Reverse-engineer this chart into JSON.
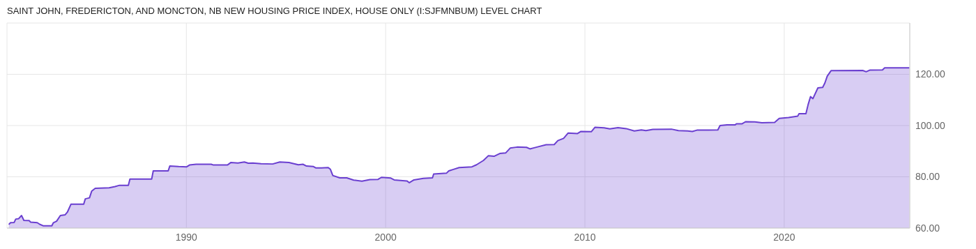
{
  "chart_data": {
    "type": "area",
    "title": "SAINT JOHN, FREDERICTON, AND MONCTON, NB NEW HOUSING PRICE INDEX, HOUSE ONLY (I:SJFMNBUM) LEVEL CHART",
    "x": [
      1981.09,
      1981.18,
      1981.36,
      1981.44,
      1981.59,
      1981.73,
      1981.85,
      1982.11,
      1982.19,
      1982.52,
      1982.64,
      1982.81,
      1983.25,
      1983.33,
      1983.49,
      1983.68,
      1983.92,
      1984.03,
      1984.21,
      1984.85,
      1984.93,
      1985.14,
      1985.25,
      1985.43,
      1986.13,
      1986.42,
      1986.65,
      1987.09,
      1987.17,
      1988.26,
      1988.34,
      1989.09,
      1989.17,
      1989.62,
      1990.02,
      1990.16,
      1990.49,
      1991.25,
      1991.36,
      1992.06,
      1992.24,
      1992.59,
      1992.91,
      1993.11,
      1993.34,
      1993.75,
      1994.33,
      1994.69,
      1995.15,
      1995.62,
      1995.85,
      1996.03,
      1996.38,
      1996.49,
      1996.78,
      1997.12,
      1997.23,
      1997.35,
      1997.7,
      1998.05,
      1998.4,
      1998.81,
      1999.21,
      1999.62,
      1999.79,
      2000.26,
      2000.43,
      2001.07,
      2001.19,
      2001.42,
      2001.89,
      2002.35,
      2002.41,
      2003.05,
      2003.17,
      2003.4,
      2003.69,
      2004.33,
      2004.56,
      2004.91,
      2005.15,
      2005.44,
      2005.73,
      2006.02,
      2006.25,
      2006.6,
      2007.07,
      2007.24,
      2007.59,
      2008.05,
      2008.46,
      2008.64,
      2008.93,
      2009.16,
      2009.63,
      2009.8,
      2010.32,
      2010.5,
      2010.96,
      2011.25,
      2011.66,
      2012.07,
      2012.48,
      2012.83,
      2013.06,
      2013.41,
      2014.34,
      2014.69,
      2015.16,
      2015.39,
      2015.62,
      2016.67,
      2016.78,
      2017.13,
      2017.54,
      2017.6,
      2017.89,
      2018.06,
      2018.53,
      2018.88,
      2019.52,
      2019.75,
      2020.22,
      2020.68,
      2020.74,
      2021.09,
      2021.2,
      2021.32,
      2021.44,
      2021.69,
      2021.93,
      2022.04,
      2022.16,
      2022.35,
      2023.94,
      2024.11,
      2024.29,
      2024.93,
      2025.04,
      2026.28
    ],
    "series": [
      {
        "color": "#6a3fd0",
        "values": [
          61.4,
          62.1,
          62.2,
          63.5,
          63.7,
          64.9,
          63.0,
          62.9,
          62.3,
          62.1,
          61.5,
          60.9,
          60.9,
          62.1,
          62.7,
          64.9,
          65.2,
          66.2,
          69.3,
          69.3,
          71.4,
          71.8,
          74.4,
          75.5,
          75.7,
          76.2,
          76.7,
          76.7,
          79.1,
          79.1,
          82.3,
          82.3,
          84.2,
          84.0,
          83.9,
          84.6,
          84.9,
          84.9,
          84.6,
          84.6,
          85.6,
          85.4,
          85.8,
          85.3,
          85.4,
          85.1,
          85.0,
          85.8,
          85.6,
          84.7,
          84.9,
          84.2,
          84.0,
          83.5,
          83.5,
          83.6,
          82.9,
          80.5,
          79.6,
          79.6,
          78.7,
          78.3,
          78.9,
          79.0,
          79.8,
          79.5,
          78.8,
          78.4,
          77.7,
          78.8,
          79.4,
          79.6,
          81.1,
          81.4,
          82.3,
          82.9,
          83.6,
          83.9,
          84.7,
          86.4,
          88.2,
          88.0,
          89.1,
          89.3,
          91.2,
          91.6,
          91.5,
          90.9,
          91.6,
          92.5,
          92.6,
          94.1,
          95.0,
          97.1,
          96.9,
          97.7,
          97.6,
          99.3,
          99.1,
          98.7,
          99.2,
          98.8,
          97.9,
          98.3,
          98.0,
          98.5,
          98.6,
          98.0,
          97.9,
          97.7,
          98.2,
          98.3,
          100.0,
          100.3,
          100.3,
          100.7,
          100.7,
          101.5,
          101.4,
          101.1,
          101.2,
          102.8,
          103.1,
          103.7,
          104.6,
          104.6,
          108.2,
          111.3,
          110.5,
          114.7,
          114.9,
          116.6,
          119.3,
          121.4,
          121.5,
          121.0,
          121.6,
          121.7,
          122.5,
          122.5
        ]
      }
    ],
    "xlim": [
      1981,
      2026.3
    ],
    "xticks": [
      1990,
      2000,
      2010,
      2020
    ],
    "ylim": [
      60,
      140
    ],
    "yticks": [
      {
        "value": 60,
        "label": "60.00"
      },
      {
        "value": 80,
        "label": "80.00"
      },
      {
        "value": 100,
        "label": "100.00"
      },
      {
        "value": 120,
        "label": "120.00"
      }
    ],
    "grid": true,
    "legend": false
  }
}
